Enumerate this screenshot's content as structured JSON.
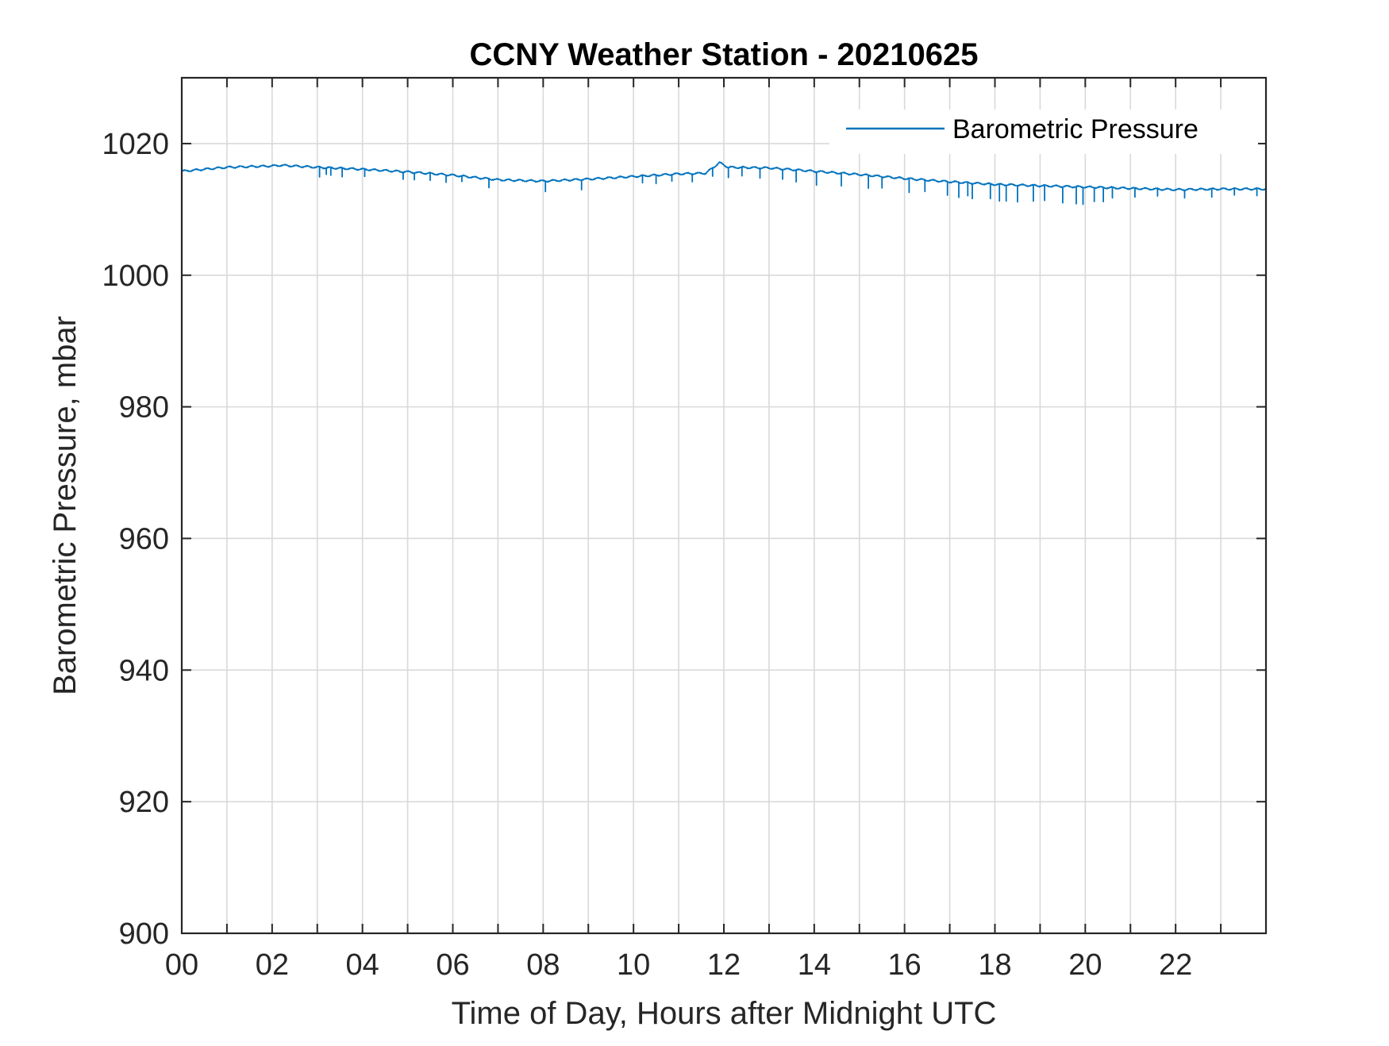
{
  "chart_data": {
    "type": "line",
    "title": "CCNY Weather Station - 20210625",
    "xlabel": "Time of Day, Hours after Midnight UTC",
    "ylabel": "Barometric Pressure, mbar",
    "xlim": [
      0,
      24
    ],
    "ylim": [
      900,
      1030
    ],
    "x_tick_values": [
      0,
      2,
      4,
      6,
      8,
      10,
      12,
      14,
      16,
      18,
      20,
      22
    ],
    "x_tick_labels": [
      "00",
      "02",
      "04",
      "06",
      "08",
      "10",
      "12",
      "14",
      "16",
      "18",
      "20",
      "22"
    ],
    "x_minor_grid_step": 1,
    "y_tick_values": [
      900,
      920,
      940,
      960,
      980,
      1000,
      1020
    ],
    "y_tick_labels": [
      "900",
      "920",
      "940",
      "960",
      "980",
      "1000",
      "1020"
    ],
    "grid": true,
    "legend": {
      "position": "top-right",
      "entries": [
        "Barometric Pressure"
      ]
    },
    "series": [
      {
        "name": "Barometric Pressure",
        "color": "#0072BD",
        "baseline": {
          "x": [
            0,
            1,
            2,
            2.2,
            3,
            4,
            5,
            6,
            7,
            8,
            9,
            10,
            11,
            11.6,
            11.9,
            12.1,
            13,
            14,
            15,
            16,
            17,
            18,
            19,
            20,
            21,
            22,
            23,
            24
          ],
          "y": [
            1015.8,
            1016.4,
            1016.6,
            1016.7,
            1016.4,
            1016.1,
            1015.7,
            1015.2,
            1014.5,
            1014.3,
            1014.6,
            1015.0,
            1015.4,
            1015.5,
            1017.1,
            1016.4,
            1016.3,
            1015.8,
            1015.3,
            1014.7,
            1014.2,
            1013.8,
            1013.6,
            1013.4,
            1013.2,
            1013.0,
            1013.1,
            1013.1
          ]
        },
        "dropouts": [
          {
            "t": 3.05,
            "d": 1.5
          },
          {
            "t": 3.2,
            "d": 1.0
          },
          {
            "t": 3.3,
            "d": 1.2
          },
          {
            "t": 3.55,
            "d": 1.4
          },
          {
            "t": 4.05,
            "d": 1.2
          },
          {
            "t": 4.9,
            "d": 1.1
          },
          {
            "t": 5.15,
            "d": 1.0
          },
          {
            "t": 5.5,
            "d": 1.2
          },
          {
            "t": 5.85,
            "d": 1.0
          },
          {
            "t": 6.2,
            "d": 0.9
          },
          {
            "t": 6.8,
            "d": 1.4
          },
          {
            "t": 8.05,
            "d": 1.6
          },
          {
            "t": 8.85,
            "d": 1.4
          },
          {
            "t": 10.2,
            "d": 1.2
          },
          {
            "t": 10.5,
            "d": 1.3
          },
          {
            "t": 10.85,
            "d": 1.0
          },
          {
            "t": 11.3,
            "d": 1.2
          },
          {
            "t": 11.75,
            "d": 1.3
          },
          {
            "t": 12.1,
            "d": 1.5
          },
          {
            "t": 12.4,
            "d": 1.4
          },
          {
            "t": 12.8,
            "d": 1.5
          },
          {
            "t": 13.3,
            "d": 1.4
          },
          {
            "t": 13.6,
            "d": 1.8
          },
          {
            "t": 14.05,
            "d": 2.0
          },
          {
            "t": 14.6,
            "d": 1.9
          },
          {
            "t": 15.2,
            "d": 2.0
          },
          {
            "t": 15.5,
            "d": 1.6
          },
          {
            "t": 16.1,
            "d": 2.1
          },
          {
            "t": 16.45,
            "d": 1.8
          },
          {
            "t": 16.95,
            "d": 2.0
          },
          {
            "t": 17.2,
            "d": 2.2
          },
          {
            "t": 17.4,
            "d": 2.0
          },
          {
            "t": 17.5,
            "d": 2.3
          },
          {
            "t": 17.9,
            "d": 2.3
          },
          {
            "t": 18.1,
            "d": 2.6
          },
          {
            "t": 18.25,
            "d": 2.3
          },
          {
            "t": 18.5,
            "d": 2.4
          },
          {
            "t": 18.85,
            "d": 2.5
          },
          {
            "t": 19.1,
            "d": 2.3
          },
          {
            "t": 19.5,
            "d": 2.4
          },
          {
            "t": 19.8,
            "d": 2.6
          },
          {
            "t": 19.95,
            "d": 2.5
          },
          {
            "t": 20.2,
            "d": 2.0
          },
          {
            "t": 20.4,
            "d": 2.1
          },
          {
            "t": 20.6,
            "d": 1.6
          },
          {
            "t": 21.1,
            "d": 1.4
          },
          {
            "t": 21.6,
            "d": 1.2
          },
          {
            "t": 22.2,
            "d": 1.2
          },
          {
            "t": 22.8,
            "d": 1.3
          },
          {
            "t": 23.3,
            "d": 1.1
          },
          {
            "t": 23.8,
            "d": 1.1
          }
        ]
      }
    ]
  }
}
